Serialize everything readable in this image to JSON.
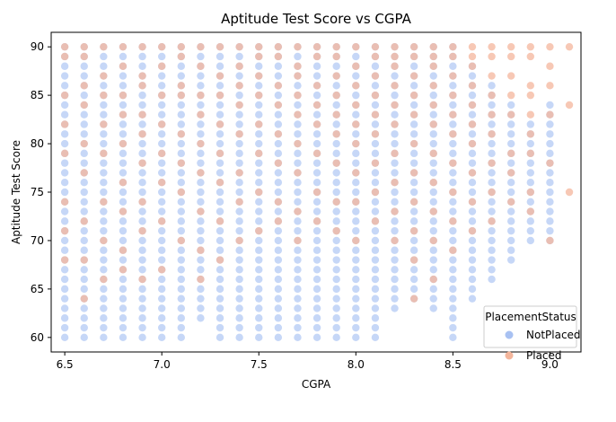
{
  "chart_data": {
    "type": "scatter",
    "title": "Aptitude Test Score vs CGPA",
    "xlabel": "CGPA",
    "ylabel": "Aptitude Test Score",
    "xlim": [
      6.43,
      9.16
    ],
    "ylim": [
      58.5,
      91.5
    ],
    "xticks": [
      6.5,
      7.0,
      7.5,
      8.0,
      8.5,
      9.0
    ],
    "xtick_labels": [
      "6.5",
      "7.0",
      "7.5",
      "8.0",
      "8.5",
      "9.0"
    ],
    "yticks": [
      60,
      65,
      70,
      75,
      80,
      85,
      90
    ],
    "ytick_labels": [
      "60",
      "65",
      "70",
      "75",
      "80",
      "85",
      "90"
    ],
    "grid": false,
    "legend": {
      "title": "PlacementStatus",
      "position": "lower-right",
      "entries": [
        {
          "name": "NotPlaced",
          "color": "#a8c1f2"
        },
        {
          "name": "Placed",
          "color": "#f4b69c"
        }
      ]
    },
    "series": [
      {
        "name": "NotPlaced",
        "color": "#a8c1f2",
        "cgpa_grid": [
          6.5,
          6.6,
          6.7,
          6.8,
          6.9,
          7.0,
          7.1,
          7.2,
          7.3,
          7.4,
          7.5,
          7.6,
          7.7,
          7.8,
          7.9,
          8.0,
          8.1,
          8.2,
          8.3,
          8.4,
          8.5,
          8.6,
          8.7,
          8.8,
          8.9,
          9.0
        ],
        "score_ranges": [
          [
            60,
            90
          ],
          [
            60,
            90
          ],
          [
            60,
            90
          ],
          [
            60,
            90
          ],
          [
            60,
            90
          ],
          [
            60,
            90
          ],
          [
            60,
            90
          ],
          [
            62,
            90
          ],
          [
            60,
            90
          ],
          [
            60,
            90
          ],
          [
            60,
            90
          ],
          [
            60,
            90
          ],
          [
            60,
            90
          ],
          [
            60,
            90
          ],
          [
            60,
            90
          ],
          [
            60,
            90
          ],
          [
            60,
            90
          ],
          [
            63,
            90
          ],
          [
            64,
            90
          ],
          [
            63,
            90
          ],
          [
            60,
            90
          ],
          [
            64,
            88
          ],
          [
            66,
            86
          ],
          [
            68,
            84
          ],
          [
            70,
            82
          ],
          [
            70,
            84
          ]
        ]
      },
      {
        "name": "Placed",
        "color": "#f4b69c",
        "points": [
          [
            6.5,
            90
          ],
          [
            6.5,
            89
          ],
          [
            6.5,
            85
          ],
          [
            6.5,
            82
          ],
          [
            6.5,
            79
          ],
          [
            6.5,
            74
          ],
          [
            6.5,
            71
          ],
          [
            6.5,
            68
          ],
          [
            6.6,
            90
          ],
          [
            6.6,
            89
          ],
          [
            6.6,
            86
          ],
          [
            6.6,
            84
          ],
          [
            6.6,
            80
          ],
          [
            6.6,
            77
          ],
          [
            6.6,
            72
          ],
          [
            6.6,
            68
          ],
          [
            6.6,
            64
          ],
          [
            6.7,
            90
          ],
          [
            6.7,
            87
          ],
          [
            6.7,
            85
          ],
          [
            6.7,
            82
          ],
          [
            6.7,
            79
          ],
          [
            6.7,
            74
          ],
          [
            6.7,
            70
          ],
          [
            6.7,
            66
          ],
          [
            6.8,
            90
          ],
          [
            6.8,
            88
          ],
          [
            6.8,
            85
          ],
          [
            6.8,
            83
          ],
          [
            6.8,
            80
          ],
          [
            6.8,
            76
          ],
          [
            6.8,
            73
          ],
          [
            6.8,
            69
          ],
          [
            6.8,
            67
          ],
          [
            6.9,
            90
          ],
          [
            6.9,
            87
          ],
          [
            6.9,
            86
          ],
          [
            6.9,
            83
          ],
          [
            6.9,
            81
          ],
          [
            6.9,
            78
          ],
          [
            6.9,
            74
          ],
          [
            6.9,
            71
          ],
          [
            6.9,
            66
          ],
          [
            7.0,
            90
          ],
          [
            7.0,
            88
          ],
          [
            7.0,
            85
          ],
          [
            7.0,
            82
          ],
          [
            7.0,
            79
          ],
          [
            7.0,
            76
          ],
          [
            7.0,
            72
          ],
          [
            7.0,
            67
          ],
          [
            7.1,
            90
          ],
          [
            7.1,
            89
          ],
          [
            7.1,
            86
          ],
          [
            7.1,
            85
          ],
          [
            7.1,
            81
          ],
          [
            7.1,
            78
          ],
          [
            7.1,
            75
          ],
          [
            7.1,
            70
          ],
          [
            7.2,
            90
          ],
          [
            7.2,
            88
          ],
          [
            7.2,
            85
          ],
          [
            7.2,
            83
          ],
          [
            7.2,
            80
          ],
          [
            7.2,
            77
          ],
          [
            7.2,
            73
          ],
          [
            7.2,
            69
          ],
          [
            7.2,
            66
          ],
          [
            7.3,
            90
          ],
          [
            7.3,
            87
          ],
          [
            7.3,
            85
          ],
          [
            7.3,
            82
          ],
          [
            7.3,
            79
          ],
          [
            7.3,
            76
          ],
          [
            7.3,
            72
          ],
          [
            7.3,
            68
          ],
          [
            7.4,
            90
          ],
          [
            7.4,
            88
          ],
          [
            7.4,
            86
          ],
          [
            7.4,
            84
          ],
          [
            7.4,
            81
          ],
          [
            7.4,
            77
          ],
          [
            7.4,
            74
          ],
          [
            7.4,
            70
          ],
          [
            7.5,
            90
          ],
          [
            7.5,
            89
          ],
          [
            7.5,
            87
          ],
          [
            7.5,
            85
          ],
          [
            7.5,
            82
          ],
          [
            7.5,
            79
          ],
          [
            7.5,
            75
          ],
          [
            7.5,
            71
          ],
          [
            7.6,
            90
          ],
          [
            7.6,
            89
          ],
          [
            7.6,
            86
          ],
          [
            7.6,
            84
          ],
          [
            7.6,
            81
          ],
          [
            7.6,
            78
          ],
          [
            7.6,
            74
          ],
          [
            7.6,
            72
          ],
          [
            7.7,
            90
          ],
          [
            7.7,
            88
          ],
          [
            7.7,
            87
          ],
          [
            7.7,
            85
          ],
          [
            7.7,
            83
          ],
          [
            7.7,
            80
          ],
          [
            7.7,
            77
          ],
          [
            7.7,
            73
          ],
          [
            7.7,
            70
          ],
          [
            7.8,
            90
          ],
          [
            7.8,
            89
          ],
          [
            7.8,
            86
          ],
          [
            7.8,
            84
          ],
          [
            7.8,
            82
          ],
          [
            7.8,
            79
          ],
          [
            7.8,
            75
          ],
          [
            7.8,
            72
          ],
          [
            7.9,
            90
          ],
          [
            7.9,
            89
          ],
          [
            7.9,
            87
          ],
          [
            7.9,
            85
          ],
          [
            7.9,
            83
          ],
          [
            7.9,
            81
          ],
          [
            7.9,
            78
          ],
          [
            7.9,
            74
          ],
          [
            7.9,
            71
          ],
          [
            8.0,
            90
          ],
          [
            8.0,
            88
          ],
          [
            8.0,
            86
          ],
          [
            8.0,
            84
          ],
          [
            8.0,
            82
          ],
          [
            8.0,
            80
          ],
          [
            8.0,
            77
          ],
          [
            8.0,
            74
          ],
          [
            8.0,
            70
          ],
          [
            8.1,
            90
          ],
          [
            8.1,
            89
          ],
          [
            8.1,
            87
          ],
          [
            8.1,
            85
          ],
          [
            8.1,
            83
          ],
          [
            8.1,
            81
          ],
          [
            8.1,
            78
          ],
          [
            8.1,
            75
          ],
          [
            8.1,
            72
          ],
          [
            8.2,
            90
          ],
          [
            8.2,
            89
          ],
          [
            8.2,
            88
          ],
          [
            8.2,
            86
          ],
          [
            8.2,
            84
          ],
          [
            8.2,
            82
          ],
          [
            8.2,
            79
          ],
          [
            8.2,
            76
          ],
          [
            8.2,
            73
          ],
          [
            8.2,
            70
          ],
          [
            8.3,
            90
          ],
          [
            8.3,
            89
          ],
          [
            8.3,
            87
          ],
          [
            8.3,
            85
          ],
          [
            8.3,
            83
          ],
          [
            8.3,
            80
          ],
          [
            8.3,
            77
          ],
          [
            8.3,
            74
          ],
          [
            8.3,
            71
          ],
          [
            8.3,
            68
          ],
          [
            8.3,
            64
          ],
          [
            8.4,
            90
          ],
          [
            8.4,
            89
          ],
          [
            8.4,
            88
          ],
          [
            8.4,
            86
          ],
          [
            8.4,
            84
          ],
          [
            8.4,
            82
          ],
          [
            8.4,
            79
          ],
          [
            8.4,
            76
          ],
          [
            8.4,
            73
          ],
          [
            8.4,
            70
          ],
          [
            8.4,
            66
          ],
          [
            8.5,
            90
          ],
          [
            8.5,
            89
          ],
          [
            8.5,
            87
          ],
          [
            8.5,
            85
          ],
          [
            8.5,
            83
          ],
          [
            8.5,
            81
          ],
          [
            8.5,
            78
          ],
          [
            8.5,
            75
          ],
          [
            8.5,
            72
          ],
          [
            8.5,
            69
          ],
          [
            8.6,
            90
          ],
          [
            8.6,
            89
          ],
          [
            8.6,
            88
          ],
          [
            8.6,
            86
          ],
          [
            8.6,
            84
          ],
          [
            8.6,
            82
          ],
          [
            8.6,
            80
          ],
          [
            8.6,
            77
          ],
          [
            8.6,
            74
          ],
          [
            8.6,
            71
          ],
          [
            8.7,
            90
          ],
          [
            8.7,
            89
          ],
          [
            8.7,
            87
          ],
          [
            8.7,
            85
          ],
          [
            8.7,
            83
          ],
          [
            8.7,
            81
          ],
          [
            8.7,
            78
          ],
          [
            8.7,
            75
          ],
          [
            8.7,
            72
          ],
          [
            8.8,
            90
          ],
          [
            8.8,
            89
          ],
          [
            8.8,
            87
          ],
          [
            8.8,
            85
          ],
          [
            8.8,
            83
          ],
          [
            8.8,
            79
          ],
          [
            8.8,
            77
          ],
          [
            8.8,
            74
          ],
          [
            8.9,
            90
          ],
          [
            8.9,
            89
          ],
          [
            8.9,
            86
          ],
          [
            8.9,
            85
          ],
          [
            8.9,
            83
          ],
          [
            8.9,
            81
          ],
          [
            8.9,
            79
          ],
          [
            8.9,
            75
          ],
          [
            8.9,
            73
          ],
          [
            9.0,
            90
          ],
          [
            9.0,
            88
          ],
          [
            9.0,
            86
          ],
          [
            9.0,
            83
          ],
          [
            9.0,
            78
          ],
          [
            9.0,
            70
          ],
          [
            9.1,
            90
          ],
          [
            9.1,
            84
          ],
          [
            9.1,
            75
          ]
        ]
      }
    ]
  }
}
